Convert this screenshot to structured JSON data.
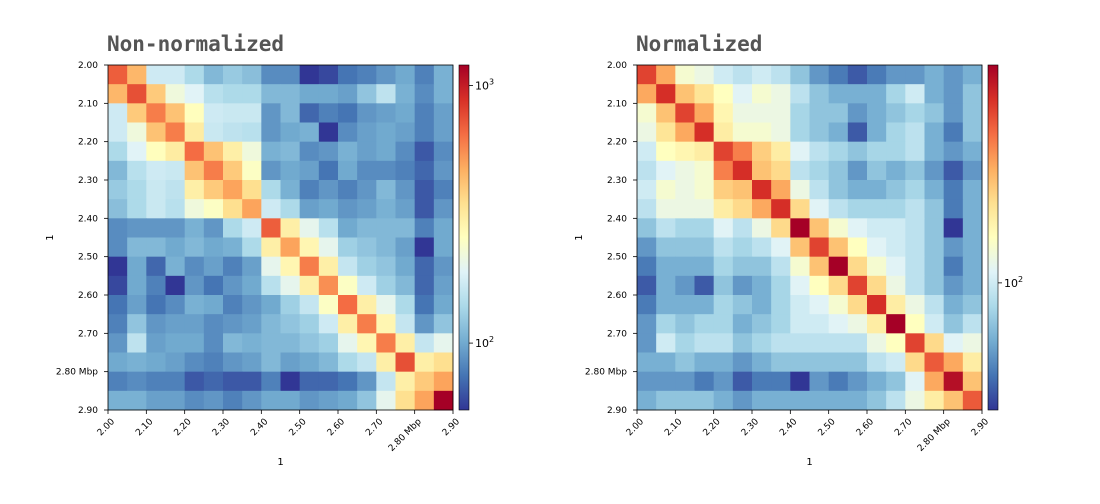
{
  "chart_data": [
    {
      "type": "heatmap",
      "title": "Non-normalized",
      "xlabel": "1",
      "ylabel": "1",
      "x_tick_labels": [
        "2.00",
        "2.10",
        "2.20",
        "2.30",
        "2.40",
        "2.50",
        "2.60",
        "2.70",
        "2.80  Mbp",
        "2.90"
      ],
      "y_tick_labels": [
        "2.00",
        "2.10",
        "2.20",
        "2.30",
        "2.40",
        "2.50",
        "2.60",
        "2.70",
        "2.80  Mbp",
        "2.90"
      ],
      "xlim": [
        2.0,
        2.9
      ],
      "ylim": [
        2.0,
        2.9
      ],
      "bin_size_mbp": 0.05,
      "color_scale": "log",
      "colormap": "RdYlBu_r",
      "colorbar": {
        "vmin": 55,
        "vmax": 1200,
        "ticks": [
          {
            "value": 1000,
            "base": "10",
            "exp": "3"
          },
          {
            "value": 100,
            "base": "10",
            "exp": "2"
          }
        ]
      },
      "values": [
        [
          700,
          450,
          170,
          170,
          140,
          110,
          125,
          115,
          85,
          85,
          50,
          60,
          75,
          80,
          90,
          100,
          80,
          105
        ],
        [
          450,
          750,
          400,
          220,
          190,
          150,
          140,
          140,
          110,
          110,
          100,
          100,
          95,
          120,
          155,
          105,
          85,
          105
        ],
        [
          170,
          400,
          600,
          420,
          260,
          170,
          165,
          165,
          90,
          110,
          70,
          80,
          75,
          90,
          95,
          100,
          80,
          95
        ],
        [
          170,
          220,
          420,
          600,
          310,
          165,
          155,
          150,
          90,
          100,
          105,
          55,
          85,
          95,
          100,
          95,
          80,
          95
        ],
        [
          140,
          190,
          260,
          310,
          650,
          420,
          300,
          220,
          105,
          110,
          85,
          90,
          105,
          95,
          100,
          85,
          65,
          85
        ],
        [
          110,
          150,
          170,
          165,
          420,
          600,
          400,
          250,
          90,
          100,
          95,
          75,
          100,
          85,
          85,
          80,
          70,
          90
        ],
        [
          125,
          140,
          165,
          155,
          300,
          400,
          500,
          350,
          140,
          105,
          80,
          90,
          80,
          90,
          110,
          90,
          65,
          80
        ],
        [
          115,
          140,
          165,
          150,
          220,
          250,
          350,
          500,
          170,
          140,
          95,
          100,
          90,
          95,
          105,
          95,
          65,
          90
        ],
        [
          85,
          90,
          90,
          90,
          105,
          90,
          140,
          170,
          700,
          300,
          200,
          150,
          100,
          110,
          110,
          110,
          80,
          100
        ],
        [
          85,
          110,
          110,
          100,
          110,
          100,
          105,
          140,
          300,
          500,
          280,
          200,
          130,
          120,
          110,
          95,
          55,
          100
        ],
        [
          50,
          100,
          70,
          105,
          85,
          95,
          80,
          95,
          200,
          280,
          600,
          300,
          160,
          130,
          120,
          100,
          70,
          90
        ],
        [
          60,
          100,
          80,
          55,
          90,
          75,
          90,
          100,
          150,
          200,
          300,
          550,
          250,
          170,
          130,
          110,
          70,
          95
        ],
        [
          75,
          95,
          75,
          85,
          105,
          100,
          80,
          90,
          100,
          130,
          160,
          250,
          650,
          300,
          200,
          140,
          75,
          100
        ],
        [
          80,
          120,
          90,
          95,
          95,
          85,
          90,
          95,
          110,
          120,
          130,
          170,
          300,
          600,
          280,
          160,
          90,
          120
        ],
        [
          90,
          155,
          95,
          100,
          100,
          85,
          110,
          105,
          110,
          110,
          120,
          130,
          200,
          280,
          600,
          300,
          160,
          200
        ],
        [
          100,
          105,
          100,
          95,
          85,
          80,
          90,
          95,
          110,
          95,
          100,
          110,
          140,
          160,
          300,
          750,
          300,
          350
        ],
        [
          80,
          85,
          80,
          80,
          65,
          70,
          65,
          65,
          80,
          55,
          70,
          70,
          75,
          90,
          160,
          300,
          400,
          500
        ],
        [
          105,
          105,
          95,
          95,
          85,
          90,
          80,
          90,
          100,
          100,
          90,
          95,
          100,
          120,
          200,
          350,
          500,
          1200
        ]
      ]
    },
    {
      "type": "heatmap",
      "title": "Normalized",
      "xlabel": "1",
      "ylabel": "1",
      "x_tick_labels": [
        "2.00",
        "2.10",
        "2.20",
        "2.30",
        "2.40",
        "2.50",
        "2.60",
        "2.70",
        "2.80  Mbp",
        "2.90"
      ],
      "y_tick_labels": [
        "2.00",
        "2.10",
        "2.20",
        "2.30",
        "2.40",
        "2.50",
        "2.60",
        "2.70",
        "2.80  Mbp",
        "2.90"
      ],
      "xlim": [
        2.0,
        2.9
      ],
      "ylim": [
        2.0,
        2.9
      ],
      "bin_size_mbp": 0.05,
      "color_scale": "log",
      "colormap": "RdYlBu_r",
      "colorbar": {
        "vmin": 60,
        "vmax": 240,
        "ticks": [
          {
            "value": 100,
            "base": "10",
            "exp": "2"
          }
        ]
      },
      "values": [
        [
          200,
          160,
          115,
          110,
          100,
          95,
          100,
          95,
          85,
          75,
          70,
          65,
          70,
          75,
          75,
          80,
          75,
          80
        ],
        [
          160,
          210,
          150,
          135,
          120,
          105,
          115,
          110,
          95,
          85,
          80,
          80,
          80,
          90,
          100,
          80,
          75,
          85
        ],
        [
          115,
          150,
          200,
          160,
          125,
          110,
          110,
          110,
          90,
          85,
          85,
          75,
          80,
          85,
          90,
          85,
          75,
          85
        ],
        [
          110,
          135,
          160,
          210,
          130,
          115,
          115,
          110,
          90,
          85,
          80,
          65,
          80,
          90,
          95,
          80,
          70,
          85
        ],
        [
          100,
          120,
          125,
          130,
          200,
          175,
          145,
          130,
          105,
          95,
          90,
          85,
          90,
          90,
          95,
          80,
          75,
          80
        ],
        [
          95,
          105,
          110,
          115,
          175,
          210,
          150,
          140,
          95,
          90,
          85,
          75,
          85,
          80,
          85,
          75,
          65,
          75
        ],
        [
          100,
          115,
          110,
          115,
          145,
          150,
          210,
          160,
          110,
          95,
          85,
          80,
          80,
          85,
          90,
          80,
          70,
          80
        ],
        [
          95,
          110,
          110,
          110,
          130,
          140,
          160,
          210,
          140,
          105,
          95,
          90,
          90,
          90,
          95,
          85,
          70,
          80
        ],
        [
          85,
          95,
          90,
          90,
          105,
          95,
          110,
          140,
          250,
          150,
          115,
          105,
          100,
          100,
          95,
          85,
          60,
          80
        ],
        [
          75,
          85,
          85,
          85,
          95,
          90,
          95,
          105,
          150,
          200,
          150,
          120,
          105,
          100,
          95,
          85,
          75,
          80
        ],
        [
          70,
          80,
          80,
          80,
          90,
          85,
          85,
          95,
          115,
          150,
          240,
          140,
          115,
          105,
          95,
          85,
          70,
          80
        ],
        [
          65,
          80,
          75,
          65,
          85,
          75,
          80,
          90,
          105,
          120,
          140,
          200,
          140,
          110,
          95,
          85,
          75,
          80
        ],
        [
          70,
          80,
          80,
          80,
          90,
          85,
          80,
          90,
          100,
          105,
          115,
          140,
          210,
          130,
          110,
          95,
          80,
          85
        ],
        [
          75,
          90,
          85,
          90,
          90,
          80,
          85,
          90,
          100,
          100,
          105,
          110,
          130,
          240,
          120,
          100,
          85,
          95
        ],
        [
          75,
          100,
          90,
          95,
          95,
          85,
          90,
          95,
          95,
          95,
          95,
          95,
          110,
          120,
          200,
          140,
          105,
          110
        ],
        [
          80,
          80,
          85,
          80,
          80,
          75,
          80,
          85,
          85,
          85,
          85,
          85,
          95,
          100,
          140,
          190,
          160,
          130
        ],
        [
          75,
          75,
          75,
          70,
          75,
          65,
          70,
          70,
          60,
          75,
          70,
          75,
          80,
          85,
          105,
          160,
          230,
          150
        ],
        [
          80,
          85,
          85,
          85,
          80,
          75,
          80,
          80,
          80,
          80,
          80,
          80,
          85,
          95,
          110,
          130,
          150,
          190
        ]
      ]
    }
  ]
}
